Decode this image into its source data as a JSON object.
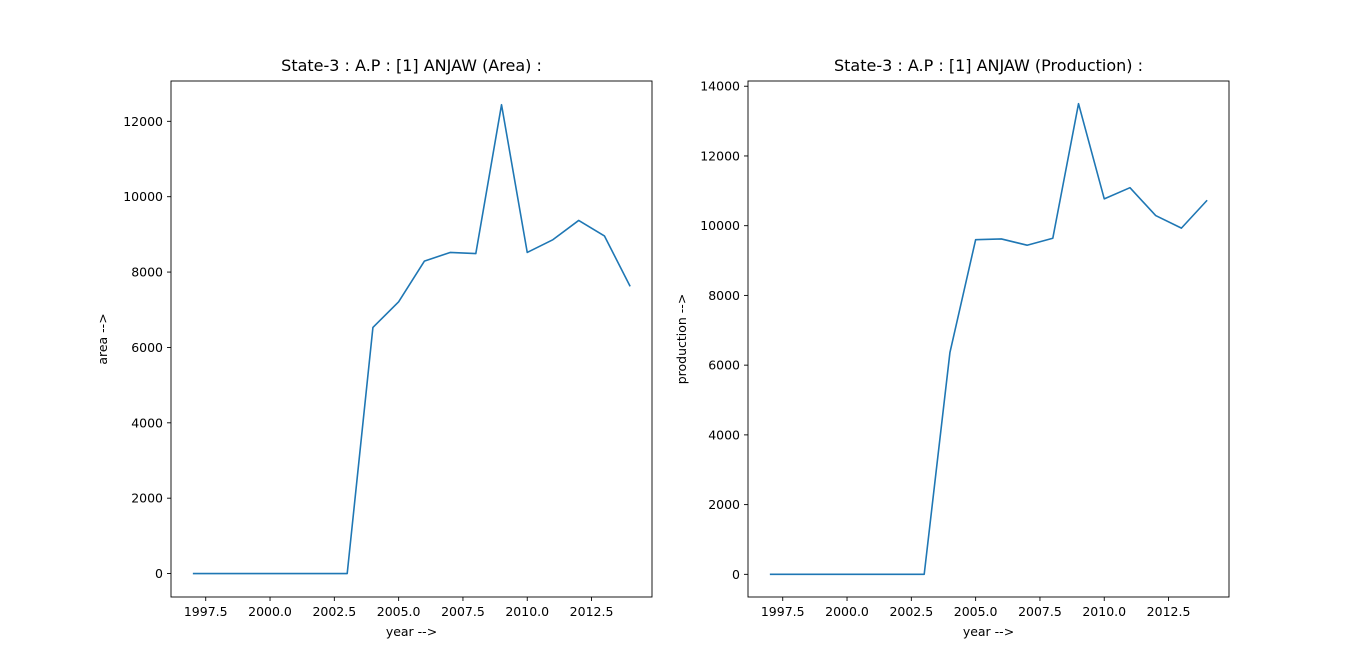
{
  "chart_data": [
    {
      "type": "line",
      "title": "State-3 : A.P : [1] ANJAW (Area) :",
      "xlabel": "year -->",
      "ylabel": "area -->",
      "xlim": [
        1996.15,
        2014.85
      ],
      "ylim": [
        -622,
        13070
      ],
      "x_ticks": [
        "1997.5",
        "2000.0",
        "2002.5",
        "2005.0",
        "2007.5",
        "2010.0",
        "2012.5"
      ],
      "x_tick_values": [
        1997.5,
        2000.0,
        2002.5,
        2005.0,
        2007.5,
        2010.0,
        2012.5
      ],
      "y_ticks": [
        "0",
        "2000",
        "4000",
        "6000",
        "8000",
        "10000",
        "12000"
      ],
      "y_tick_values": [
        0,
        2000,
        4000,
        6000,
        8000,
        10000,
        12000
      ],
      "grid": false,
      "color": "#1f77b4",
      "series": [
        {
          "x": [
            1997,
            1998,
            1999,
            2000,
            2001,
            2002,
            2003,
            2004,
            2005,
            2006,
            2007,
            2008,
            2009,
            2010,
            2011,
            2012,
            2013,
            2014
          ],
          "values": [
            0,
            0,
            0,
            0,
            0,
            0,
            0,
            6530,
            7210,
            8290,
            8520,
            8490,
            12440,
            8520,
            8860,
            9370,
            8960,
            7620
          ]
        }
      ]
    },
    {
      "type": "line",
      "title": "State-3 : A.P : [1] ANJAW (Production) :",
      "xlabel": "year -->",
      "ylabel": "production -->",
      "xlim": [
        1996.15,
        2014.85
      ],
      "ylim": [
        -650,
        14150
      ],
      "x_ticks": [
        "1997.5",
        "2000.0",
        "2002.5",
        "2005.0",
        "2007.5",
        "2010.0",
        "2012.5"
      ],
      "x_tick_values": [
        1997.5,
        2000.0,
        2002.5,
        2005.0,
        2007.5,
        2010.0,
        2012.5
      ],
      "y_ticks": [
        "0",
        "2000",
        "4000",
        "6000",
        "8000",
        "10000",
        "12000",
        "14000"
      ],
      "y_tick_values": [
        0,
        2000,
        4000,
        6000,
        8000,
        10000,
        12000,
        14000
      ],
      "grid": false,
      "color": "#1f77b4",
      "series": [
        {
          "x": [
            1997,
            1998,
            1999,
            2000,
            2001,
            2002,
            2003,
            2004,
            2005,
            2006,
            2007,
            2008,
            2009,
            2010,
            2011,
            2012,
            2013,
            2014
          ],
          "values": [
            0,
            0,
            0,
            0,
            0,
            0,
            0,
            6360,
            9600,
            9620,
            9440,
            9640,
            13500,
            10770,
            11090,
            10290,
            9930,
            10730
          ]
        }
      ]
    }
  ]
}
